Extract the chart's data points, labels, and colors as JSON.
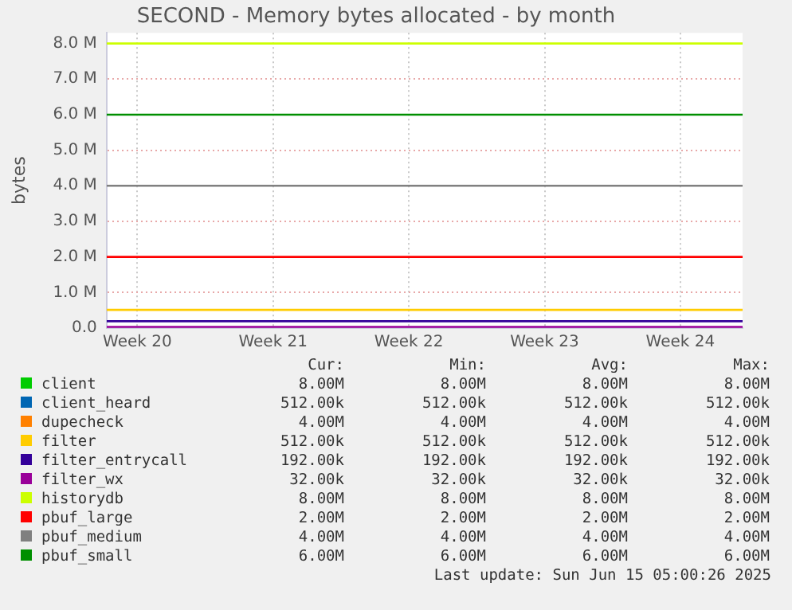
{
  "chart_data": {
    "type": "line",
    "title": "SECOND - Memory bytes allocated - by month",
    "ylabel": "bytes",
    "xlim": [
      "2025-05-13T10:00",
      "2025-06-15T05:00"
    ],
    "xticks": [
      {
        "value": "2025-05-15",
        "label": "Week 20"
      },
      {
        "value": "2025-05-22",
        "label": "Week 21"
      },
      {
        "value": "2025-05-29",
        "label": "Week 22"
      },
      {
        "value": "2025-06-05",
        "label": "Week 23"
      },
      {
        "value": "2025-06-12",
        "label": "Week 24"
      }
    ],
    "ylim": [
      0,
      8300000
    ],
    "yticks": [
      {
        "value": 0,
        "label": "0.0"
      },
      {
        "value": 1000000,
        "label": "1.0 M"
      },
      {
        "value": 2000000,
        "label": "2.0 M"
      },
      {
        "value": 3000000,
        "label": "3.0 M"
      },
      {
        "value": 4000000,
        "label": "4.0 M"
      },
      {
        "value": 5000000,
        "label": "5.0 M"
      },
      {
        "value": 6000000,
        "label": "6.0 M"
      },
      {
        "value": 7000000,
        "label": "7.0 M"
      },
      {
        "value": 8000000,
        "label": "8.0 M"
      }
    ],
    "x": [
      "2025-05-13T10:00",
      "2025-06-15T05:00"
    ],
    "series": [
      {
        "name": "client",
        "color": "#00cc00",
        "values": [
          null,
          null
        ]
      },
      {
        "name": "client_heard",
        "color": "#0066b3",
        "values": [
          null,
          null
        ]
      },
      {
        "name": "dupecheck",
        "color": "#ff8000",
        "values": [
          null,
          null
        ]
      },
      {
        "name": "filter",
        "color": "#ffcc00",
        "values": [
          512000,
          512000
        ]
      },
      {
        "name": "filter_entrycall",
        "color": "#330099",
        "values": [
          192000,
          192000
        ]
      },
      {
        "name": "filter_wx",
        "color": "#990099",
        "values": [
          32000,
          32000
        ]
      },
      {
        "name": "historydb",
        "color": "#ccff00",
        "values": [
          8000000,
          8000000
        ]
      },
      {
        "name": "pbuf_large",
        "color": "#ff0000",
        "values": [
          2000000,
          2000000
        ]
      },
      {
        "name": "pbuf_medium",
        "color": "#808080",
        "values": [
          4000000,
          4000000
        ]
      },
      {
        "name": "pbuf_small",
        "color": "#008f00",
        "values": [
          6000000,
          6000000
        ]
      }
    ],
    "grid": true,
    "legend": "bottom",
    "marker": "none",
    "line_style": "solid",
    "annotations": [
      "Cur:",
      "Min:",
      "Avg:",
      "Max:",
      "8.00M",
      "8.00M",
      "8.00M",
      "8.00M",
      "512.00k",
      "512.00k",
      "512.00k",
      "512.00k",
      "4.00M",
      "4.00M",
      "4.00M",
      "4.00M",
      "512.00k",
      "512.00k",
      "512.00k",
      "512.00k",
      "192.00k",
      "192.00k",
      "192.00k",
      "192.00k",
      "32.00k",
      "32.00k",
      "32.00k",
      "32.00k",
      "8.00M",
      "8.00M",
      "8.00M",
      "8.00M",
      "2.00M",
      "2.00M",
      "2.00M",
      "2.00M",
      "4.00M",
      "4.00M",
      "4.00M",
      "4.00M",
      "6.00M",
      "6.00M",
      "6.00M",
      "6.00M",
      "Last update: Sun Jun 15 05:00:26 2025"
    ]
  }
}
